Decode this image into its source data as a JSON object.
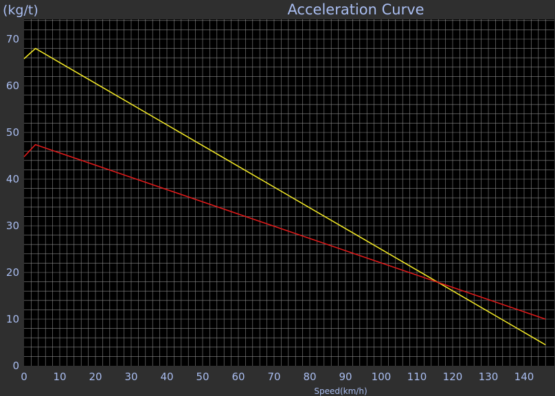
{
  "chart_data": {
    "type": "line",
    "title": "Acceleration Curve",
    "xlabel": "Speed(km/h)",
    "ylabel": "(kg/t)",
    "xlim": [
      0,
      146
    ],
    "ylim": [
      0,
      75
    ],
    "x_ticks": [
      0,
      10,
      20,
      30,
      40,
      50,
      60,
      70,
      80,
      90,
      100,
      110,
      120,
      130,
      140
    ],
    "y_ticks": [
      0,
      10,
      20,
      30,
      40,
      50,
      60,
      70
    ],
    "grid": true,
    "series": [
      {
        "color": "#f0e626",
        "x": [
          0,
          3.2,
          146
        ],
        "y": [
          65.8,
          68.0,
          4.5
        ]
      },
      {
        "color": "#dd1a1a",
        "x": [
          0,
          3.2,
          146
        ],
        "y": [
          44.8,
          47.4,
          10.0
        ]
      }
    ]
  },
  "colors": {
    "background": "#2f2f2f",
    "plot_background": "#000000",
    "grid": "#8a8a8a",
    "text": "#a9bdf0"
  }
}
